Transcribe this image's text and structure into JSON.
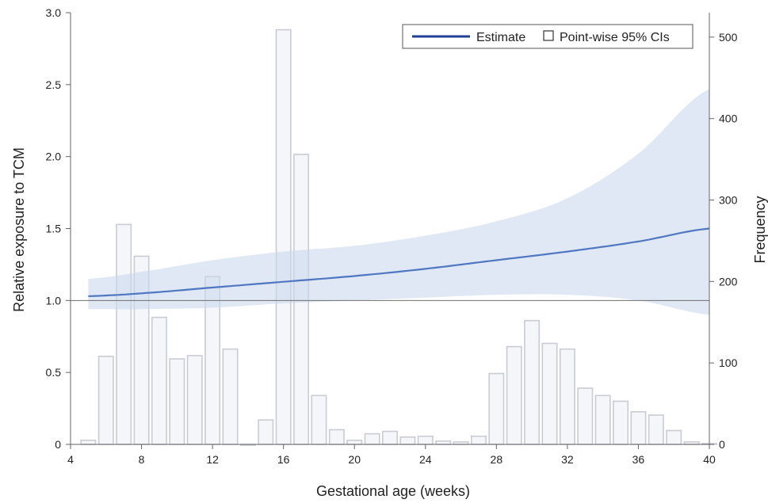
{
  "chart_data": {
    "type": "bar",
    "xlabel": "Gestational age (weeks)",
    "ylabel": "Relative exposure to TCM",
    "ylabel_right": "Frequency",
    "xlim": [
      4,
      40
    ],
    "ylim": [
      0,
      3.0
    ],
    "ylim_right": [
      0,
      530
    ],
    "x_ticks": [
      4,
      8,
      12,
      16,
      20,
      24,
      28,
      32,
      36,
      40
    ],
    "y_ticks": [
      0,
      0.5,
      1.0,
      1.5,
      2.0,
      2.5,
      3.0
    ],
    "y_tick_labels": [
      "0",
      "0.5",
      "1.0",
      "1.5",
      "2.0",
      "2.5",
      "3.0"
    ],
    "y_right_ticks": [
      0,
      100,
      200,
      300,
      400,
      500
    ],
    "reference_line_y": 1.0,
    "legend": {
      "position": "top-right",
      "estimate_label": "Estimate",
      "ci_label": "Point-wise 95% CIs"
    },
    "histogram": {
      "name": "Frequency",
      "weeks": [
        5,
        6,
        7,
        8,
        9,
        10,
        11,
        12,
        13,
        14,
        15,
        16,
        17,
        18,
        19,
        20,
        21,
        22,
        23,
        24,
        25,
        26,
        27,
        28,
        29,
        30,
        31,
        32,
        33,
        34,
        35,
        36,
        37,
        38,
        39,
        40
      ],
      "values": [
        5,
        108,
        270,
        231,
        156,
        105,
        109,
        206,
        117,
        0,
        30,
        509,
        356,
        60,
        18,
        5,
        13,
        16,
        9,
        10,
        4,
        3,
        10,
        87,
        120,
        152,
        124,
        117,
        69,
        60,
        53,
        40,
        36,
        17,
        3,
        1
      ]
    },
    "estimate": {
      "name": "Estimate",
      "x": [
        5,
        8,
        12,
        16,
        20,
        24,
        28,
        32,
        36,
        40
      ],
      "y": [
        1.03,
        1.05,
        1.09,
        1.13,
        1.17,
        1.22,
        1.28,
        1.34,
        1.41,
        1.5
      ]
    },
    "ci": {
      "name": "Point-wise 95% CIs",
      "x": [
        5,
        8,
        12,
        16,
        20,
        24,
        28,
        32,
        36,
        40
      ],
      "lower": [
        0.94,
        0.94,
        0.95,
        0.98,
        1.0,
        1.02,
        1.04,
        1.04,
        1.0,
        0.9
      ],
      "upper": [
        1.15,
        1.2,
        1.28,
        1.34,
        1.38,
        1.45,
        1.55,
        1.71,
        2.02,
        2.47
      ]
    }
  }
}
